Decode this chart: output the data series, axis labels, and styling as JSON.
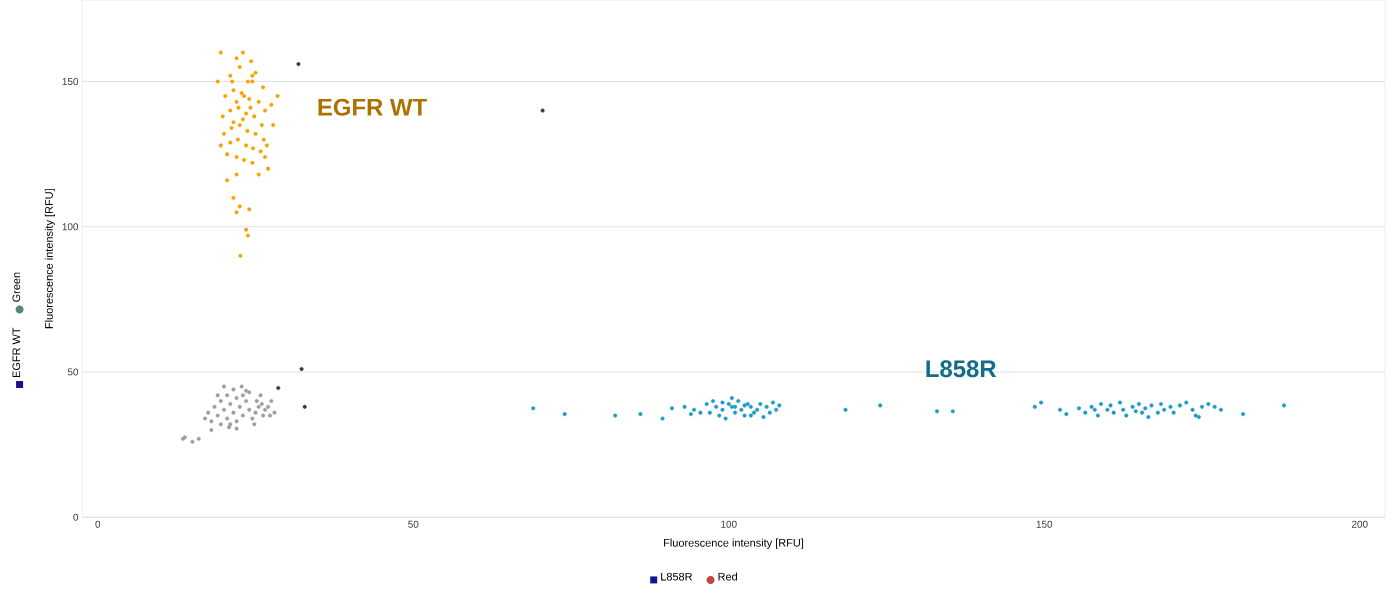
{
  "chart_data": {
    "type": "scatter",
    "xlabel": "Fluorescence intensity [RFU]",
    "ylabel": "Fluorescence intensity [RFU]",
    "xlim": [
      -2.5,
      204
    ],
    "ylim": [
      0,
      178
    ],
    "xticks": [
      0,
      50,
      100,
      150,
      200
    ],
    "yticks": [
      0,
      50,
      100,
      150
    ],
    "grid": "y",
    "series": [
      {
        "color": "#9e9e9e",
        "x": [
          18.0,
          19.0,
          20.0,
          21.0,
          22.0,
          23.0,
          24.0,
          19.5,
          20.5,
          21.5,
          22.5,
          23.5,
          20.8,
          22.0,
          23.0,
          24.0,
          18.5,
          19.5,
          20.5,
          21.5,
          22.8,
          17.5,
          24.5,
          25.0,
          25.5,
          26.0,
          26.5,
          27.0,
          27.5,
          25.2,
          24.8,
          26.2,
          27.3,
          22.0,
          19.0,
          18.0,
          16.0,
          15.0,
          13.5,
          13.8,
          20.0,
          23.5,
          25.8,
          28.0,
          17.0,
          21.0
        ],
        "values": [
          33,
          35,
          37,
          39,
          41,
          42,
          43,
          32,
          34,
          36,
          38,
          40,
          31,
          33,
          35,
          37,
          38,
          40,
          42,
          44,
          45,
          36,
          34,
          36,
          38,
          39,
          37,
          38,
          40,
          40,
          32,
          35,
          35,
          30.5,
          42,
          30,
          27,
          26,
          27,
          27.5,
          45,
          43.5,
          42,
          36,
          34,
          32
        ]
      },
      {
        "name": "EGFR WT",
        "color": "#f5a300",
        "x": [
          21.0,
          22.5,
          23.8,
          25.0,
          26.2,
          20.2,
          21.5,
          22.8,
          24.0,
          25.5,
          26.5,
          19.8,
          21.0,
          22.3,
          23.5,
          24.8,
          26.0,
          20.0,
          21.2,
          22.5,
          23.7,
          25.0,
          26.3,
          19.5,
          21.0,
          22.2,
          23.5,
          24.6,
          25.8,
          20.5,
          22.0,
          23.2,
          24.5,
          21.5,
          23.0,
          24.2,
          22.0,
          23.2,
          21.3,
          24.5,
          22.0,
          23.0,
          24.3,
          19.0,
          27.5,
          27.8,
          28.5,
          26.8,
          27.0,
          25.5,
          20.5,
          22.0,
          21.5,
          22.5,
          22.0,
          24.0,
          23.5,
          23.8,
          22.6,
          26.5,
          19.5,
          24.5
        ],
        "values": [
          152,
          155,
          150,
          153,
          148,
          145,
          147,
          146,
          144,
          143,
          140,
          138,
          140,
          141,
          139,
          138,
          135,
          132,
          134,
          135,
          133,
          132,
          130,
          128,
          129,
          130,
          128,
          127,
          126,
          125,
          124,
          123,
          122,
          136,
          137,
          141,
          143,
          145,
          150,
          150,
          158,
          160,
          157,
          150,
          142,
          135,
          145,
          128,
          120,
          118,
          116,
          118,
          110,
          107,
          105,
          106,
          99,
          97,
          90,
          124,
          160,
          152
        ]
      },
      {
        "name": "L858R",
        "color": "#1a9cc4",
        "x": [
          93.0,
          94.5,
          95.5,
          96.5,
          97.0,
          98.0,
          98.5,
          99.0,
          100.0,
          100.5,
          101.0,
          101.5,
          102.0,
          102.5,
          103.0,
          103.5,
          104.0,
          104.5,
          105.0,
          105.5,
          106.0,
          106.5,
          107.0,
          107.5,
          108.0,
          97.5,
          99.5,
          100.5,
          94.0,
          102.5,
          101.0,
          99.0,
          103.5,
          69,
          74,
          82,
          86,
          89.5,
          91,
          118.5,
          124,
          133,
          135.5,
          148.5,
          149.5,
          152.5,
          153.5,
          155.5,
          156.5,
          157.5,
          158.5,
          159.0,
          160.0,
          160.5,
          161.0,
          162.0,
          162.5,
          163.0,
          164.0,
          164.5,
          165.0,
          166.0,
          166.5,
          167.0,
          168.0,
          168.5,
          169.0,
          170.0,
          170.5,
          171.5,
          172.5,
          173.5,
          174.0,
          175.0,
          176.0,
          177.0,
          178,
          181.5,
          188,
          174.5,
          158.0,
          165.5
        ],
        "values": [
          38,
          37,
          36,
          39,
          36,
          38,
          35,
          37,
          39,
          38,
          36,
          40,
          37,
          35,
          39,
          38,
          36,
          37,
          39,
          34.5,
          38,
          36,
          39.5,
          37,
          38.5,
          40,
          34,
          41,
          35.5,
          38.5,
          38,
          39.5,
          35,
          37.5,
          35.5,
          35,
          35.5,
          34,
          37.5,
          37,
          38.5,
          36.5,
          36.5,
          38,
          39.5,
          37,
          35.5,
          37.5,
          36,
          38,
          35,
          39,
          37,
          38.5,
          36,
          39.5,
          37,
          35,
          38,
          36.5,
          39,
          37.5,
          34.5,
          38.5,
          36,
          39,
          37,
          38,
          36,
          38.5,
          39.5,
          37,
          35,
          38,
          39,
          38,
          37,
          35.5,
          38.5,
          34.5,
          37,
          36
        ]
      },
      {
        "color": "#3a3a3a",
        "x": [
          31.8,
          70.5,
          32.3,
          32.8,
          28.6
        ],
        "values": [
          156,
          140,
          51,
          38,
          44.5
        ]
      }
    ],
    "annotations": [
      "EGFR WT",
      "Green",
      "L858R",
      "Red"
    ]
  }
}
